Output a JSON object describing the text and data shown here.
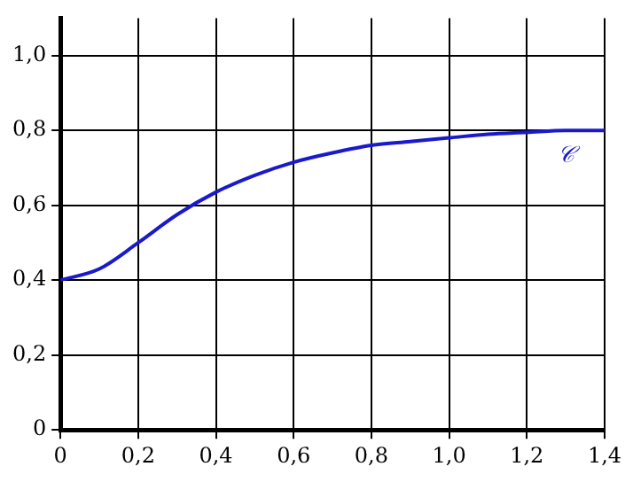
{
  "chart_data": {
    "type": "line",
    "x": [
      0,
      0.1,
      0.2,
      0.3,
      0.4,
      0.5,
      0.6,
      0.7,
      0.8,
      0.9,
      1.0,
      1.1,
      1.2,
      1.3,
      1.4
    ],
    "series": [
      {
        "name": "𝒞",
        "color": "#1a1acc",
        "values": [
          0.4,
          0.43,
          0.5,
          0.575,
          0.635,
          0.68,
          0.715,
          0.74,
          0.76,
          0.77,
          0.78,
          0.79,
          0.795,
          0.8,
          0.8
        ]
      }
    ],
    "xlim": [
      0,
      1.4
    ],
    "xticks": [
      {
        "value": 0,
        "label": "0"
      },
      {
        "value": 0.2,
        "label": "0,2"
      },
      {
        "value": 0.4,
        "label": "0,4"
      },
      {
        "value": 0.6,
        "label": "0,6"
      },
      {
        "value": 0.8,
        "label": "0,8"
      },
      {
        "value": 1.0,
        "label": "1,0"
      },
      {
        "value": 1.2,
        "label": "1,2"
      },
      {
        "value": 1.4,
        "label": "1,4"
      }
    ],
    "ylim": [
      0,
      1.1
    ],
    "yticks": [
      {
        "value": 0,
        "label": "0"
      },
      {
        "value": 0.2,
        "label": "0,2"
      },
      {
        "value": 0.4,
        "label": "0,4"
      },
      {
        "value": 0.6,
        "label": "0,6"
      },
      {
        "value": 0.8,
        "label": "0,8"
      },
      {
        "value": 1.0,
        "label": "1,0"
      }
    ],
    "grid": true,
    "legend": false,
    "marker": "none",
    "line_style": "solid"
  }
}
